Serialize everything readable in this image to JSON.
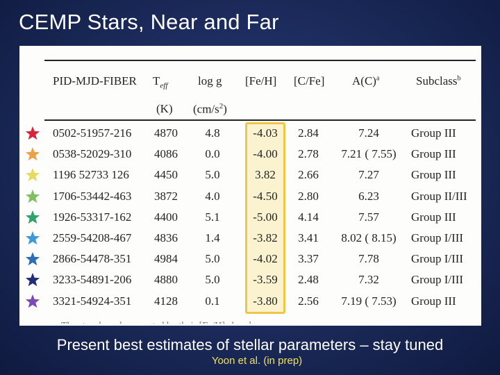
{
  "title": "CEMP Stars, Near and Far",
  "table": {
    "headers": {
      "pid": "PID-MJD-FIBER",
      "teff": "T",
      "teff_sub": "eff",
      "teff_unit": "(K)",
      "logg": "log g",
      "logg_unit": "(cm/s",
      "logg_unit_sup": "2",
      "logg_unit_close": ")",
      "feh": "[Fe/H]",
      "cfe": "[C/Fe]",
      "ac": "A(C)",
      "ac_sup": "a",
      "subclass": "Subclass",
      "subclass_sup": "b"
    },
    "rows": [
      {
        "pid": "0502-51957-216",
        "teff": "4870",
        "logg": "4.8",
        "feh": "-4.03",
        "cfe": "2.84",
        "ac": "7.24",
        "subclass": "Group III",
        "star_color": "#d4253a"
      },
      {
        "pid": "0538-52029-310",
        "teff": "4086",
        "logg": "0.0",
        "feh": "-4.00",
        "cfe": "2.78",
        "ac": "7.21 ( 7.55)",
        "subclass": "Group III",
        "star_color": "#eba148"
      },
      {
        "pid": "1196 52733 126",
        "teff": "4450",
        "logg": "5.0",
        "feh": "3.82",
        "cfe": "2.66",
        "ac": "7.27",
        "subclass": "Group III",
        "star_color": "#e6db5e"
      },
      {
        "pid": "1706-53442-463",
        "teff": "3872",
        "logg": "4.0",
        "feh": "-4.50",
        "cfe": "2.80",
        "ac": "6.23",
        "subclass": "Group II/III",
        "star_color": "#7fbf60"
      },
      {
        "pid": "1926-53317-162",
        "teff": "4400",
        "logg": "5.1",
        "feh": "-5.00",
        "cfe": "4.14",
        "ac": "7.57",
        "subclass": "Group III",
        "star_color": "#2ea36a"
      },
      {
        "pid": "2559-54208-467",
        "teff": "4836",
        "logg": "1.4",
        "feh": "-3.82",
        "cfe": "3.41",
        "ac": "8.02 ( 8.15)",
        "subclass": "Group I/III",
        "star_color": "#3d9ad6"
      },
      {
        "pid": "2866-54478-351",
        "teff": "4984",
        "logg": "5.0",
        "feh": "-4.02",
        "cfe": "3.37",
        "ac": "7.78",
        "subclass": "Group I/III",
        "star_color": "#2c6db5"
      },
      {
        "pid": "3233-54891-206",
        "teff": "4880",
        "logg": "5.0",
        "feh": "-3.59",
        "cfe": "2.48",
        "ac": "7.32",
        "subclass": "Group I/III",
        "star_color": "#1f2f7a"
      },
      {
        "pid": "3321-54924-351",
        "teff": "4128",
        "logg": "0.1",
        "feh": "-3.80",
        "cfe": "2.56",
        "ac": "7.19 ( 7.53)",
        "subclass": "Group III",
        "star_color": "#7a4bb3"
      }
    ],
    "feh_highlight_color": "#f0c648"
  },
  "caption": "Present best estimates of stellar parameters – stay tuned",
  "credit": "Yoon et al. (in prep)"
}
